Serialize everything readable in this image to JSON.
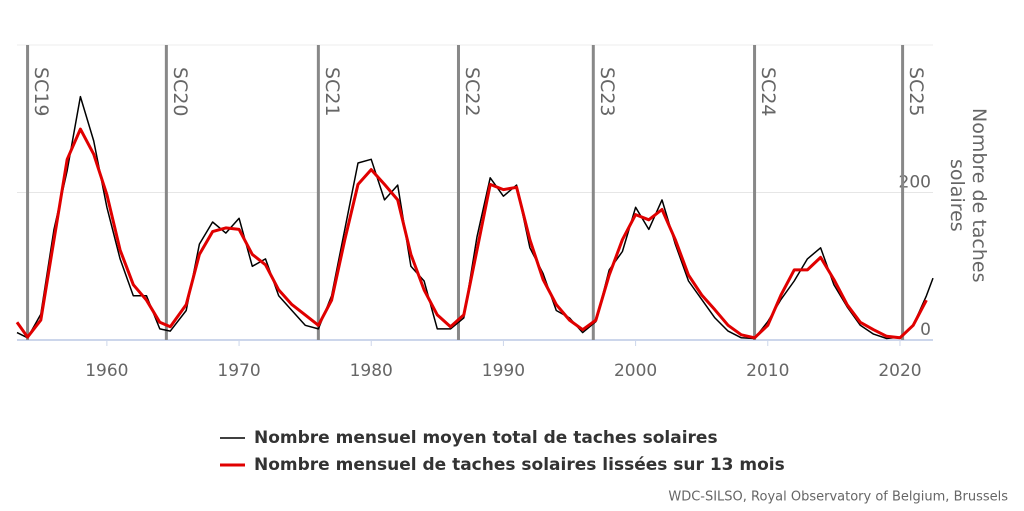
{
  "chart_data": {
    "type": "line",
    "y_axis_label": "Nombre de taches solaires",
    "source": "WDC-SILSO, Royal Observatory of Belgium, Brussels",
    "xlim": [
      1953.2,
      2022.5
    ],
    "xticks": [
      1960,
      1970,
      1980,
      1990,
      2000,
      2010,
      2020
    ],
    "ylim": [
      0,
      400
    ],
    "yticks": [
      0,
      200
    ],
    "grid": true,
    "cycles": [
      {
        "label": "SC19",
        "x": 1954.0
      },
      {
        "label": "SC20",
        "x": 1964.5
      },
      {
        "label": "SC21",
        "x": 1976.0
      },
      {
        "label": "SC22",
        "x": 1986.6
      },
      {
        "label": "SC23",
        "x": 1996.8
      },
      {
        "label": "SC24",
        "x": 2009.0
      },
      {
        "label": "SC25",
        "x": 2020.2
      }
    ],
    "x": [
      1953.2,
      1954,
      1955,
      1956,
      1957,
      1958,
      1959,
      1960,
      1961,
      1962,
      1963,
      1964,
      1964.8,
      1966,
      1967,
      1968,
      1969,
      1970,
      1971,
      1972,
      1973,
      1974,
      1975,
      1976,
      1977,
      1978,
      1979,
      1980,
      1981,
      1982,
      1983,
      1984,
      1985,
      1986,
      1987,
      1988,
      1989,
      1990,
      1991,
      1992,
      1993,
      1994,
      1995,
      1996,
      1997,
      1998,
      1999,
      2000,
      2001,
      2002,
      2003,
      2004,
      2005,
      2006,
      2007,
      2008,
      2009,
      2010,
      2011,
      2012,
      2013,
      2014,
      2015,
      2016,
      2017,
      2018,
      2019,
      2020,
      2021,
      2022,
      2022.5
    ],
    "series": [
      {
        "name": "Nombre mensuel moyen total de taches solaires",
        "color": "#000000",
        "width": 1.5,
        "values": [
          10,
          3,
          35,
          150,
          230,
          330,
          270,
          180,
          110,
          60,
          60,
          15,
          12,
          40,
          130,
          160,
          145,
          165,
          100,
          110,
          60,
          40,
          20,
          15,
          60,
          150,
          240,
          245,
          190,
          210,
          100,
          80,
          15,
          15,
          30,
          140,
          220,
          195,
          210,
          125,
          90,
          40,
          30,
          10,
          25,
          95,
          120,
          180,
          150,
          190,
          130,
          80,
          55,
          30,
          12,
          3,
          2,
          25,
          55,
          80,
          110,
          125,
          75,
          45,
          20,
          8,
          2,
          4,
          20,
          60,
          84
        ]
      },
      {
        "name": "Nombre mensuel de taches solaires lissées sur 13 mois",
        "color": "#e00000",
        "width": 3,
        "values": [
          24,
          4,
          27,
          136,
          245,
          286,
          252,
          197,
          122,
          75,
          54,
          24,
          18,
          48,
          116,
          147,
          152,
          150,
          116,
          102,
          68,
          48,
          34,
          20,
          54,
          136,
          211,
          231,
          211,
          190,
          116,
          68,
          34,
          18,
          34,
          122,
          211,
          204,
          207,
          136,
          82,
          48,
          27,
          14,
          27,
          88,
          136,
          170,
          163,
          177,
          136,
          88,
          61,
          41,
          20,
          7,
          3,
          20,
          61,
          95,
          95,
          112,
          82,
          48,
          24,
          14,
          5,
          3,
          20,
          54,
          null
        ]
      }
    ]
  }
}
